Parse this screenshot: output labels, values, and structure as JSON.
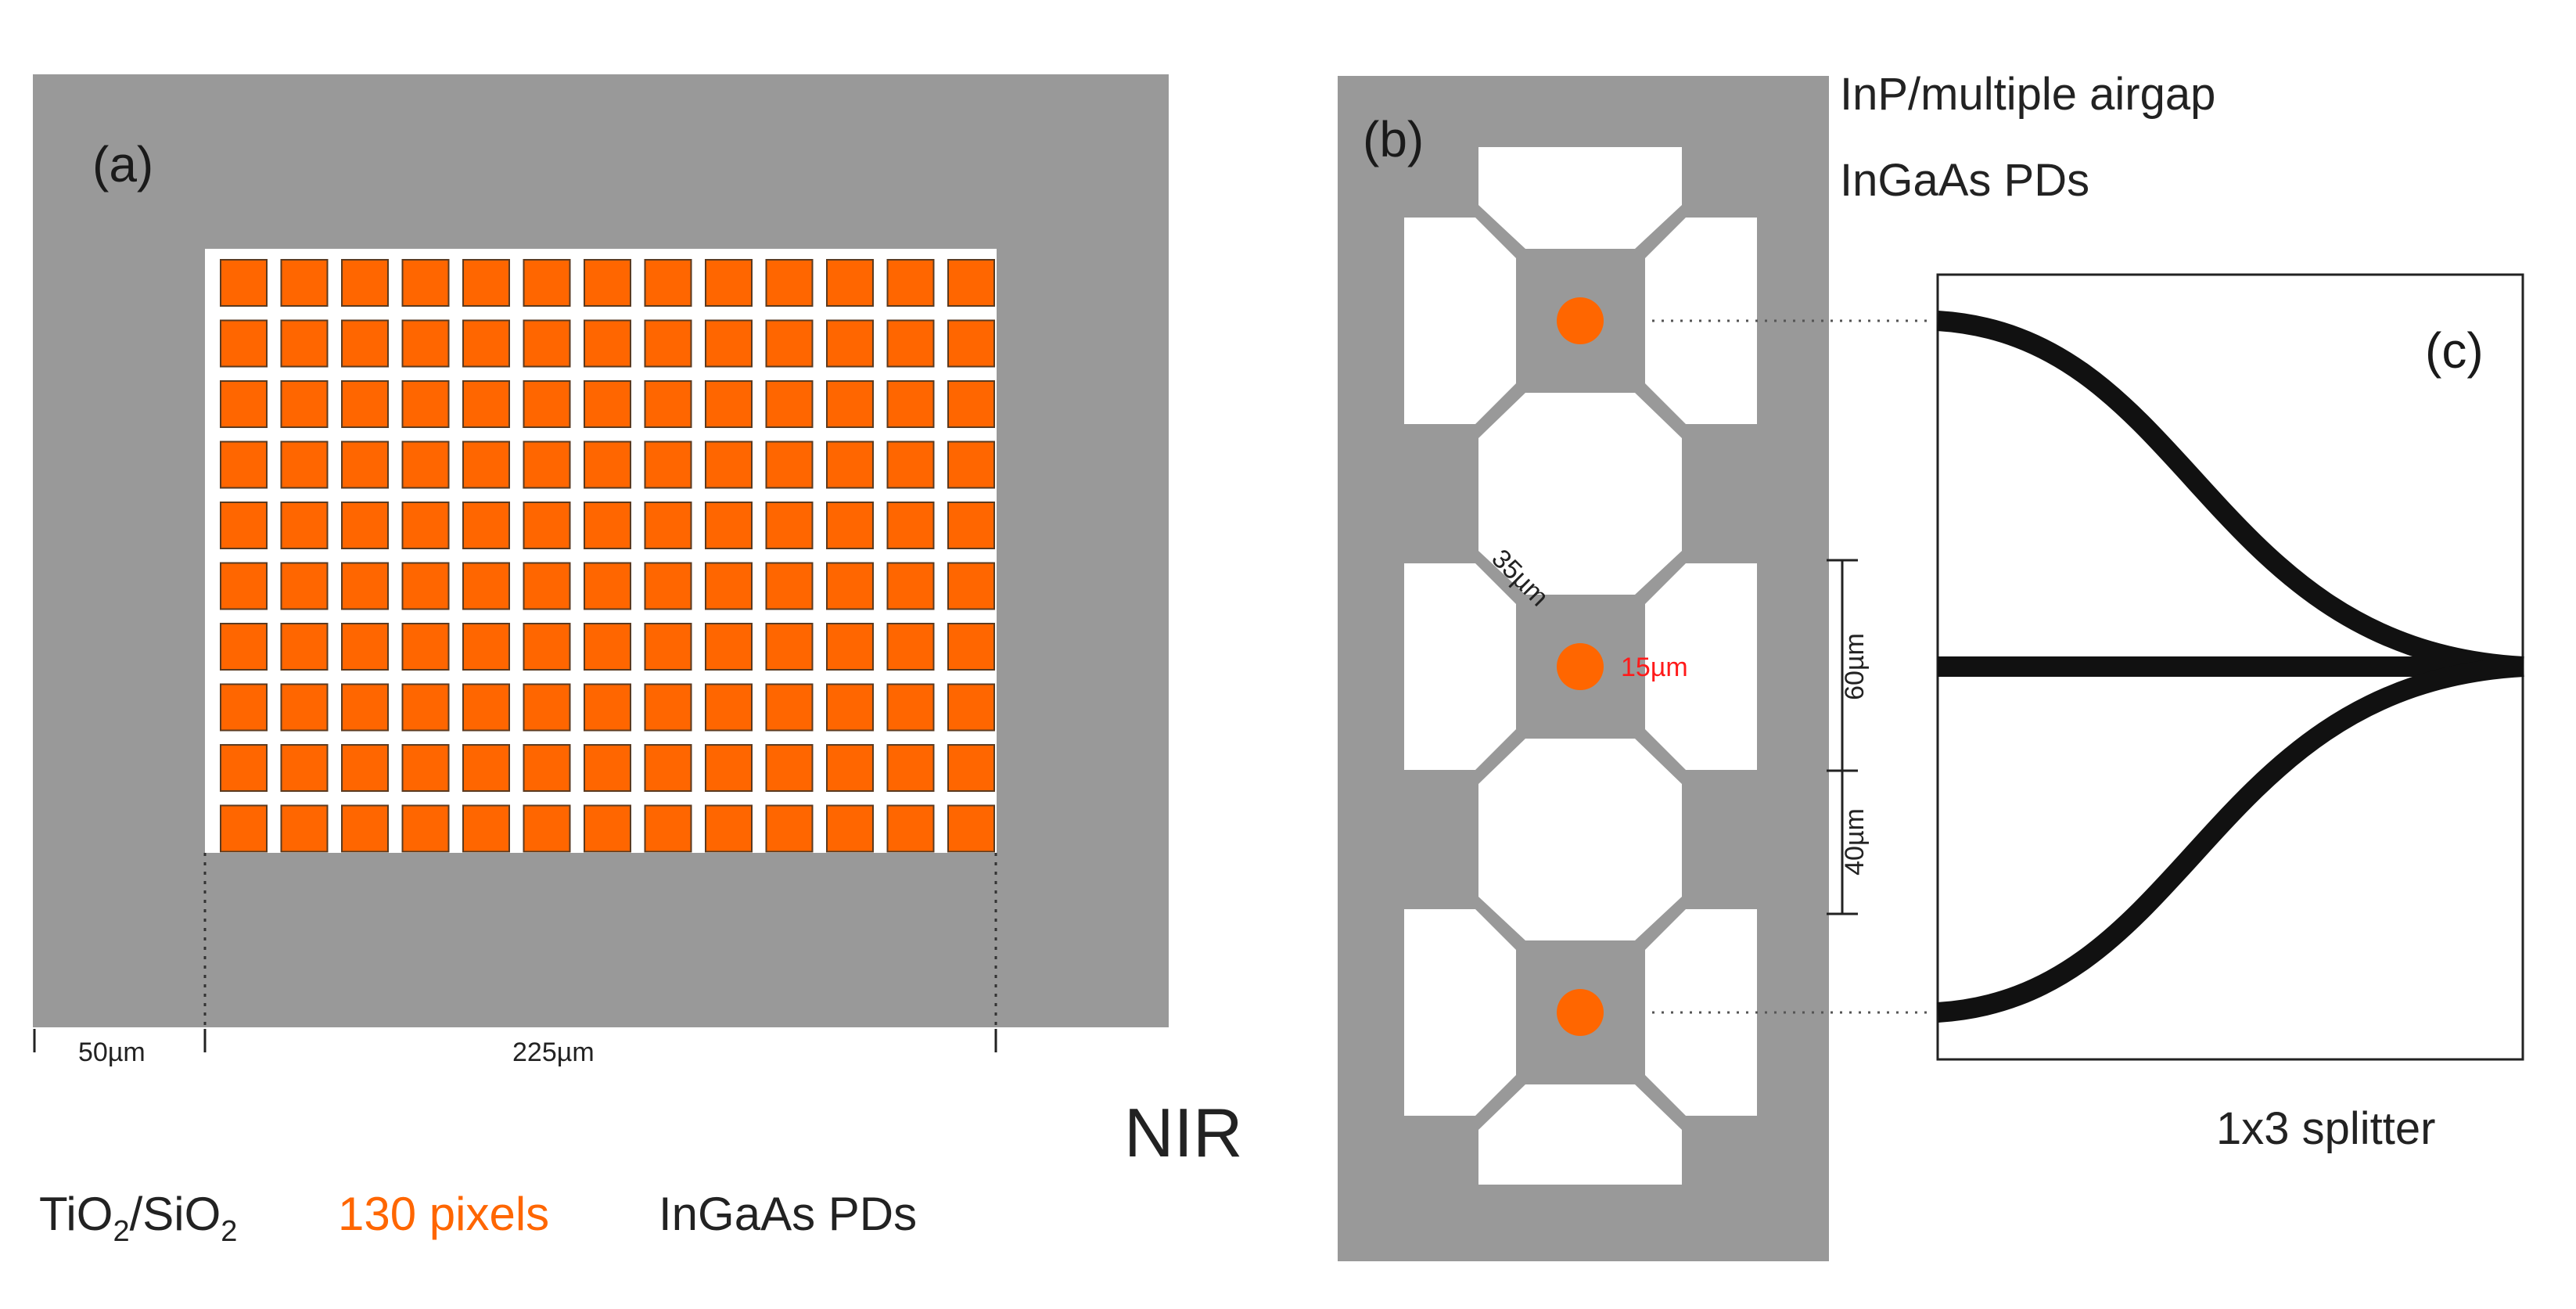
{
  "panel_a": {
    "label": "(a)",
    "grid_rows": 10,
    "grid_cols": 13,
    "dim_left": "50µm",
    "dim_right": "225µm",
    "legend": {
      "material_1": "TiO",
      "material_1_sub": "2",
      "separator": "/SiO",
      "material_2_sub": "2",
      "pixels": "130 pixels",
      "detector": "InGaAs PDs"
    },
    "band": "NIR"
  },
  "panel_b": {
    "label": "(b)",
    "title_line1": "InP/multiple airgap",
    "title_line2": "InGaAs PDs",
    "dim_arm": "35µm",
    "dim_pd": "15µm",
    "dim_pitch": "60µm",
    "dim_gap": "40µm"
  },
  "panel_c": {
    "label": "(c)",
    "caption": "1x3 splitter"
  },
  "colors": {
    "substrate": "#999999",
    "pixel": "#ff6600",
    "pd_label": "#ff1a1a",
    "legend_orange": "#ff6600",
    "waveguide": "#111111"
  }
}
